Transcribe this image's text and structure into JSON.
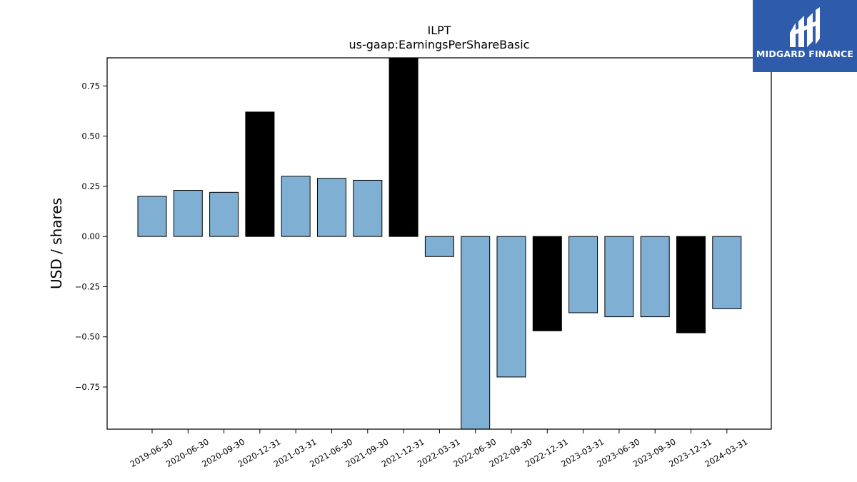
{
  "chart_data": {
    "type": "bar",
    "title": "ILPT",
    "subtitle": "us-gaap:EarningsPerShareBasic",
    "xlabel": "",
    "ylabel": "USD / shares",
    "ylim": [
      -0.96,
      0.89
    ],
    "yticks": [
      0.75,
      0.5,
      0.25,
      0.0,
      -0.25,
      -0.5,
      -0.75
    ],
    "ytick_labels": [
      "0.75",
      "0.50",
      "0.25",
      "0.00",
      "−0.25",
      "−0.50",
      "−0.75"
    ],
    "categories": [
      "2019-06-30",
      "2020-06-30",
      "2020-09-30",
      "2020-12-31",
      "2021-03-31",
      "2021-06-30",
      "2021-09-30",
      "2021-12-31",
      "2022-03-31",
      "2022-06-30",
      "2022-09-30",
      "2022-12-31",
      "2023-03-31",
      "2023-06-30",
      "2023-09-30",
      "2023-12-31",
      "2024-03-31"
    ],
    "values": [
      0.2,
      0.23,
      0.22,
      0.62,
      0.3,
      0.29,
      0.28,
      0.89,
      -0.1,
      -0.96,
      -0.7,
      -0.47,
      -0.38,
      -0.4,
      -0.4,
      -0.48,
      -0.36
    ],
    "bar_colors": [
      "#7fafd3",
      "#7fafd3",
      "#7fafd3",
      "#000000",
      "#7fafd3",
      "#7fafd3",
      "#7fafd3",
      "#000000",
      "#7fafd3",
      "#7fafd3",
      "#7fafd3",
      "#000000",
      "#7fafd3",
      "#7fafd3",
      "#7fafd3",
      "#000000",
      "#7fafd3"
    ],
    "grid": false,
    "legend": "none"
  },
  "logo": {
    "text": "MIDGARD FINANCE",
    "background": "#2f5bab"
  }
}
